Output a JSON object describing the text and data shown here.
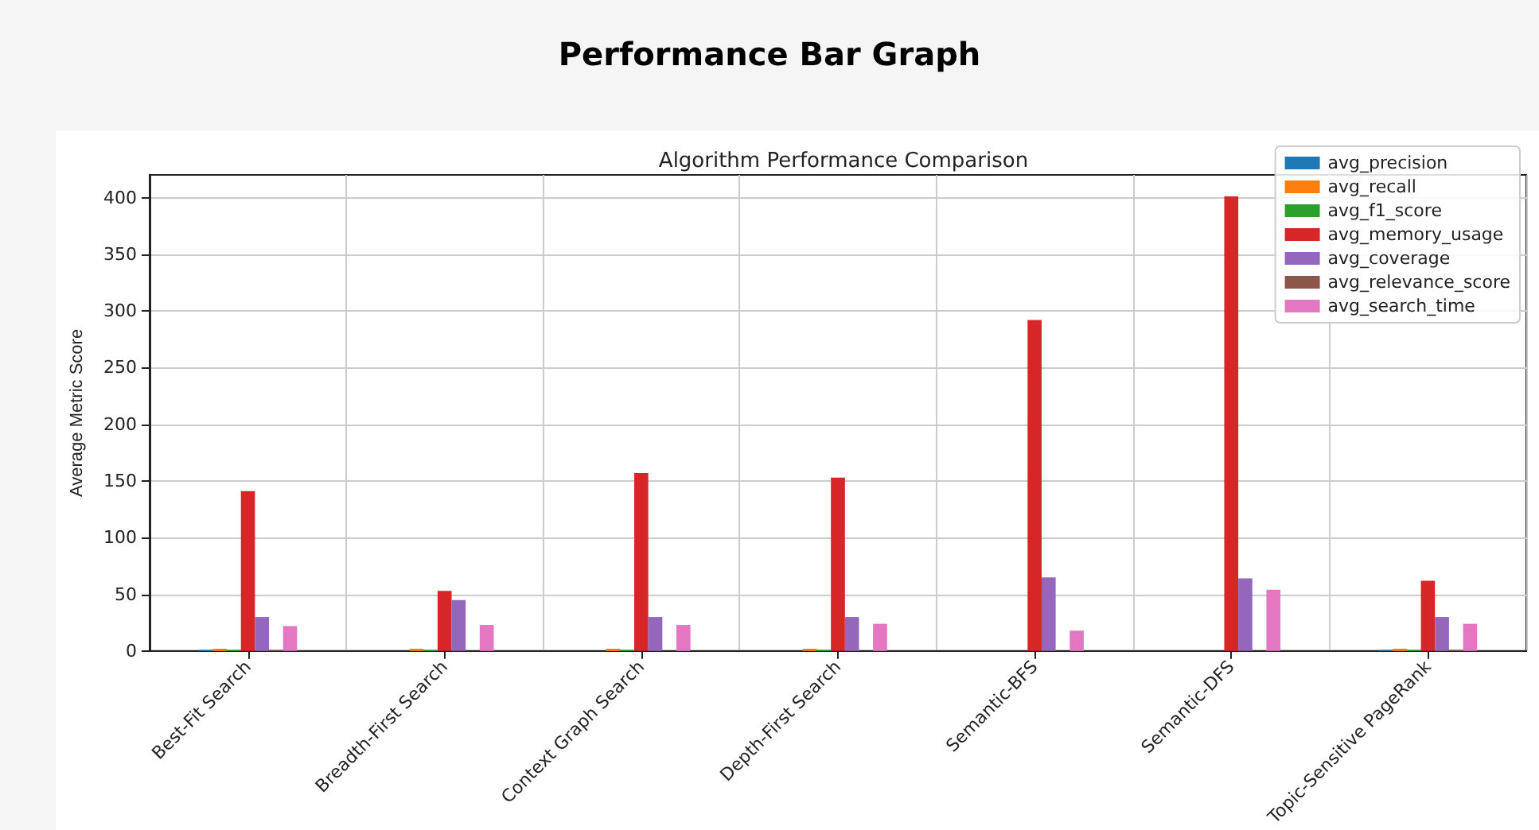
{
  "chart_data": {
    "type": "bar",
    "title": "Performance Bar Graph",
    "subtitle": "Algorithm Performance Comparison",
    "ylabel": "Average Metric Score",
    "categories": [
      "Best-Fit Search",
      "Breadth-First Search",
      "Context Graph Search",
      "Depth-First Search",
      "Semantic-BFS",
      "Semantic-DFS",
      "Topic-Sensitive PageRank"
    ],
    "series": [
      {
        "name": "avg_precision",
        "color": "#1f77b4",
        "values": [
          1,
          0,
          0,
          0,
          0,
          0,
          1
        ]
      },
      {
        "name": "avg_recall",
        "color": "#ff7f0e",
        "values": [
          2,
          2,
          2,
          2,
          0,
          0,
          2
        ]
      },
      {
        "name": "avg_f1_score",
        "color": "#2ca02c",
        "values": [
          1,
          1,
          1,
          1,
          0,
          0,
          1
        ]
      },
      {
        "name": "avg_memory_usage",
        "color": "#d62728",
        "values": [
          141,
          53,
          157,
          153,
          292,
          401,
          62
        ]
      },
      {
        "name": "avg_coverage",
        "color": "#9467bd",
        "values": [
          30,
          45,
          30,
          30,
          65,
          64,
          30
        ]
      },
      {
        "name": "avg_relevance_score",
        "color": "#8c564b",
        "values": [
          1,
          0,
          0,
          0,
          0,
          0,
          1
        ]
      },
      {
        "name": "avg_search_time",
        "color": "#e377c2",
        "values": [
          22,
          23,
          23,
          24,
          18,
          54,
          24
        ]
      }
    ],
    "ylim": [
      0,
      420
    ],
    "yticks": [
      0,
      50,
      100,
      150,
      200,
      250,
      300,
      350,
      400
    ],
    "grid": true,
    "legend": "top right"
  }
}
